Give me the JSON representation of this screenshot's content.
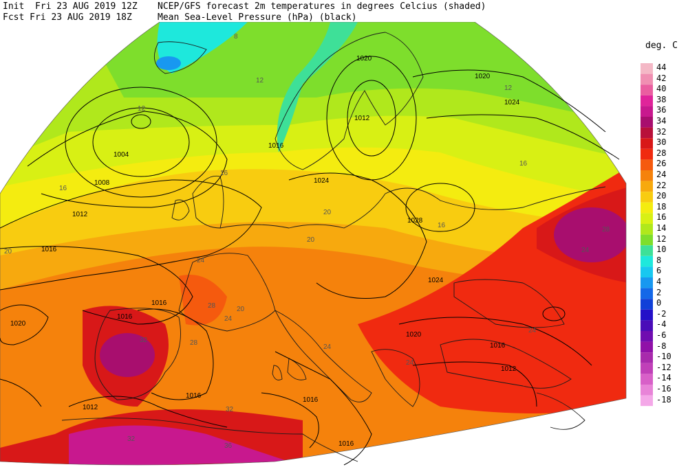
{
  "header": {
    "init_label": "Init  Fri 23 AUG 2019 12Z",
    "fcst_label": "Fcst Fri 23 AUG 2019 18Z",
    "title_line1": "NCEP/GFS forecast 2m temperatures in degrees Celcius (shaded)",
    "title_line2": "Mean Sea-Level Pressure (hPa) (black)"
  },
  "legend": {
    "title": "deg. C",
    "entries": [
      {
        "label": "44",
        "color": "#f4b8c6"
      },
      {
        "label": "42",
        "color": "#f08fb2"
      },
      {
        "label": "40",
        "color": "#ea5ea0"
      },
      {
        "label": "38",
        "color": "#e0249a"
      },
      {
        "label": "36",
        "color": "#c8188e"
      },
      {
        "label": "34",
        "color": "#a80e6e"
      },
      {
        "label": "32",
        "color": "#b8103a"
      },
      {
        "label": "30",
        "color": "#d81818"
      },
      {
        "label": "28",
        "color": "#f02a10"
      },
      {
        "label": "26",
        "color": "#f55a0e"
      },
      {
        "label": "24",
        "color": "#f5820c"
      },
      {
        "label": "22",
        "color": "#f7a90e"
      },
      {
        "label": "20",
        "color": "#f8cc10"
      },
      {
        "label": "18",
        "color": "#f4ec10"
      },
      {
        "label": "16",
        "color": "#d8f014"
      },
      {
        "label": "14",
        "color": "#b0e81c"
      },
      {
        "label": "12",
        "color": "#7ede2c"
      },
      {
        "label": "10",
        "color": "#3ee098"
      },
      {
        "label": "8",
        "color": "#1ee8dc"
      },
      {
        "label": "6",
        "color": "#18c8f0"
      },
      {
        "label": "4",
        "color": "#1898f0"
      },
      {
        "label": "2",
        "color": "#1468e8"
      },
      {
        "label": "0",
        "color": "#1040d8"
      },
      {
        "label": "-2",
        "color": "#2410c8"
      },
      {
        "label": "-4",
        "color": "#4a0cb8"
      },
      {
        "label": "-6",
        "color": "#700cb0"
      },
      {
        "label": "-8",
        "color": "#9010a8"
      },
      {
        "label": "-10",
        "color": "#a82aac"
      },
      {
        "label": "-12",
        "color": "#c040b8"
      },
      {
        "label": "-14",
        "color": "#d860c8"
      },
      {
        "label": "-16",
        "color": "#e884d8"
      },
      {
        "label": "-18",
        "color": "#f4a8e8"
      }
    ]
  },
  "map": {
    "isobar_labels": [
      "1004",
      "1008",
      "1012",
      "1016",
      "1020",
      "1024",
      "1028",
      "1012",
      "1016",
      "1020",
      "1024",
      "1016",
      "1012",
      "1016",
      "1020",
      "1024",
      "1016",
      "1012",
      "1016",
      "1016",
      "1020",
      "1016"
    ],
    "temp_labels": [
      "8",
      "12",
      "12",
      "12",
      "16",
      "16",
      "16",
      "16",
      "20",
      "20",
      "20",
      "20",
      "24",
      "24",
      "24",
      "24",
      "24",
      "24",
      "28",
      "28",
      "28",
      "32",
      "32",
      "32",
      "36"
    ]
  }
}
